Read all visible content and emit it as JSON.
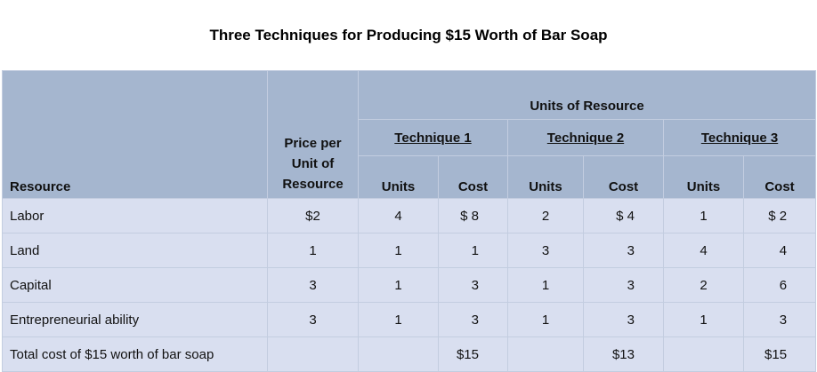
{
  "title": "Three Techniques for Producing $15 Worth of Bar Soap",
  "header": {
    "resource": "Resource",
    "price": "Price per Unit of Resource",
    "units_of_resource": "Units of Resource",
    "techniques": [
      "Technique 1",
      "Technique 2",
      "Technique 3"
    ],
    "units": "Units",
    "cost": "Cost"
  },
  "rows": [
    {
      "resource": "Labor",
      "price": "$2",
      "cells": [
        "4",
        "$ 8",
        "2",
        "$ 4",
        "1",
        "$ 2"
      ]
    },
    {
      "resource": "Land",
      "price": "1",
      "cells": [
        "1",
        "1",
        "3",
        "3",
        "4",
        "4"
      ]
    },
    {
      "resource": "Capital",
      "price": "3",
      "cells": [
        "1",
        "3",
        "1",
        "3",
        "2",
        "6"
      ]
    },
    {
      "resource": "Entrepreneurial ability",
      "price": "3",
      "cells": [
        "1",
        "3",
        "1",
        "3",
        "1",
        "3"
      ]
    },
    {
      "resource": "Total cost of $15 worth of bar soap",
      "price": "",
      "cells": [
        "",
        "$15",
        "",
        "$13",
        "",
        "$15"
      ]
    }
  ]
}
